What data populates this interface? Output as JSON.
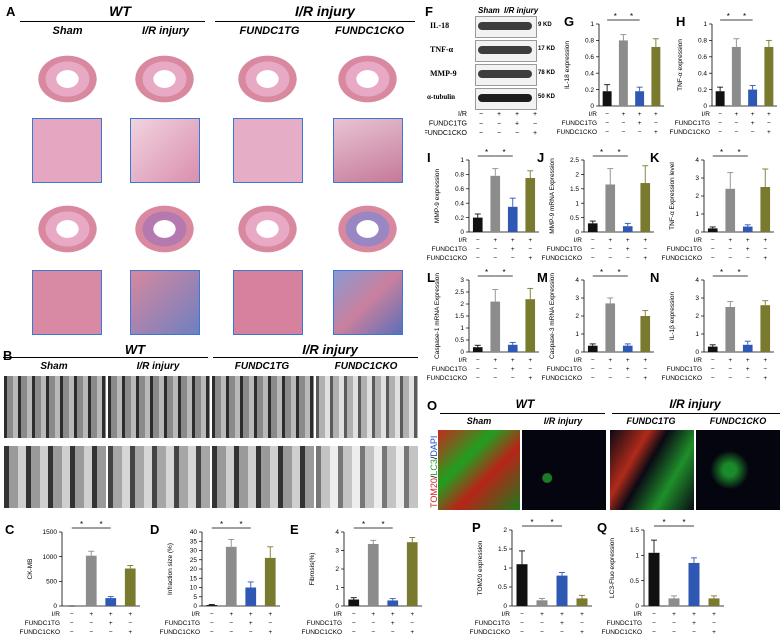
{
  "panels": {
    "A": "A",
    "B": "B",
    "C": "C",
    "D": "D",
    "E": "E",
    "F": "F",
    "G": "G",
    "H": "H",
    "I": "I",
    "J": "J",
    "K": "K",
    "L": "L",
    "M": "M",
    "N": "N",
    "O": "O",
    "P": "P",
    "Q": "Q"
  },
  "groups": {
    "wt": "WT",
    "ir": "I/R injury",
    "sham": "Sham",
    "ir_injury": "I/R  injury",
    "tg": "FUNDC1TG",
    "cko": "FUNDC1CKO"
  },
  "wb": {
    "header_sham": "Sham",
    "header_ir": "I/R  injury",
    "proteins": [
      "IL-18",
      "TNF-α",
      "MMP-9",
      "α-tubulin"
    ],
    "sizes": [
      "9 KD",
      "17 KD",
      "78 KD",
      "50 KD"
    ]
  },
  "rowlabels": {
    "ir": "I/R",
    "tg": "FUNDC1TG",
    "cko": "FUNDC1CKO"
  },
  "signs": {
    "minus": "−",
    "plus": "+"
  },
  "colors": {
    "sham": "#111111",
    "ir": "#8c8c8c",
    "tg": "#2f57b4",
    "cko": "#7a7a2e"
  },
  "o_axis": {
    "tom20": "TOM20",
    "lc3": "LC3",
    "dapi": "DAPI"
  },
  "chart_data": [
    {
      "id": "C",
      "type": "bar",
      "ylabel": "CK-MB",
      "yticks": [
        0,
        500,
        1000,
        1500
      ],
      "ylim": [
        0,
        1500
      ],
      "values": [
        0,
        1020,
        160,
        760
      ],
      "errors": [
        0,
        90,
        30,
        60
      ],
      "sig": [
        [
          0,
          1
        ],
        [
          1,
          2
        ]
      ]
    },
    {
      "id": "D",
      "type": "bar",
      "ylabel": "Infraction size (%)",
      "yticks": [
        0,
        5,
        10,
        15,
        20,
        25,
        30,
        35,
        40
      ],
      "ylim": [
        0,
        40
      ],
      "values": [
        0.5,
        32,
        10,
        26
      ],
      "errors": [
        0.3,
        4,
        3,
        6
      ],
      "sig": [
        [
          0,
          1
        ],
        [
          1,
          2
        ]
      ]
    },
    {
      "id": "E",
      "type": "bar",
      "ylabel": "Fibrosis(%)",
      "yticks": [
        0,
        1,
        2,
        3,
        4
      ],
      "ylim": [
        0,
        4
      ],
      "values": [
        0.35,
        3.35,
        0.3,
        3.45
      ],
      "errors": [
        0.1,
        0.2,
        0.1,
        0.25
      ],
      "sig": [
        [
          0,
          1
        ],
        [
          1,
          2
        ]
      ]
    },
    {
      "id": "G",
      "type": "bar",
      "ylabel": "IL-18 expression",
      "yticks": [
        0,
        0.2,
        0.4,
        0.6,
        0.8,
        1.0
      ],
      "ylim": [
        0,
        1.0
      ],
      "values": [
        0.18,
        0.8,
        0.18,
        0.72
      ],
      "errors": [
        0.08,
        0.07,
        0.05,
        0.1
      ],
      "sig": [
        [
          0,
          1
        ],
        [
          1,
          2
        ]
      ]
    },
    {
      "id": "H",
      "type": "bar",
      "ylabel": "TNF-α expression",
      "yticks": [
        0,
        0.2,
        0.4,
        0.6,
        0.8,
        1.0
      ],
      "ylim": [
        0,
        1.0
      ],
      "values": [
        0.18,
        0.72,
        0.2,
        0.72
      ],
      "errors": [
        0.05,
        0.1,
        0.05,
        0.08
      ],
      "sig": [
        [
          0,
          1
        ],
        [
          1,
          2
        ]
      ]
    },
    {
      "id": "I",
      "type": "bar",
      "ylabel": "MMP-9 expression",
      "yticks": [
        0,
        0.2,
        0.4,
        0.6,
        0.8,
        1.0
      ],
      "ylim": [
        0,
        1.0
      ],
      "values": [
        0.2,
        0.78,
        0.35,
        0.75
      ],
      "errors": [
        0.05,
        0.1,
        0.12,
        0.1
      ],
      "sig": [
        [
          0,
          1
        ],
        [
          1,
          2
        ]
      ]
    },
    {
      "id": "J",
      "type": "bar",
      "ylabel": "MMP-9 mRNA Expression",
      "yticks": [
        0,
        0.5,
        1.0,
        1.5,
        2.0,
        2.5
      ],
      "ylim": [
        0,
        2.5
      ],
      "values": [
        0.3,
        1.65,
        0.2,
        1.7
      ],
      "errors": [
        0.08,
        0.55,
        0.1,
        0.6
      ],
      "sig": [
        [
          0,
          1
        ],
        [
          1,
          2
        ]
      ]
    },
    {
      "id": "K",
      "type": "bar",
      "ylabel": "TNF-α Expression level",
      "yticks": [
        0,
        1,
        2,
        3,
        4
      ],
      "ylim": [
        0,
        4
      ],
      "values": [
        0.2,
        2.4,
        0.3,
        2.5
      ],
      "errors": [
        0.08,
        0.9,
        0.1,
        1.0
      ],
      "sig": [
        [
          0,
          1
        ],
        [
          1,
          2
        ]
      ]
    },
    {
      "id": "L",
      "type": "bar",
      "ylabel": "Caspase-1 mRNA Expression",
      "yticks": [
        0,
        0.5,
        1.0,
        1.5,
        2.0,
        2.5,
        3.0
      ],
      "ylim": [
        0,
        3.0
      ],
      "values": [
        0.2,
        2.1,
        0.3,
        2.2
      ],
      "errors": [
        0.08,
        0.5,
        0.1,
        0.45
      ],
      "sig": [
        [
          0,
          1
        ],
        [
          1,
          2
        ]
      ]
    },
    {
      "id": "M",
      "type": "bar",
      "ylabel": "Caspase-3 mRNA Expression",
      "yticks": [
        0,
        1,
        2,
        3,
        4
      ],
      "ylim": [
        0,
        4
      ],
      "values": [
        0.35,
        2.7,
        0.35,
        2.0
      ],
      "errors": [
        0.1,
        0.3,
        0.1,
        0.3
      ],
      "sig": [
        [
          0,
          1
        ],
        [
          1,
          2
        ]
      ]
    },
    {
      "id": "N",
      "type": "bar",
      "ylabel": "IL-1β expression",
      "yticks": [
        0,
        1,
        2,
        3,
        4
      ],
      "ylim": [
        0,
        4
      ],
      "values": [
        0.3,
        2.5,
        0.4,
        2.6
      ],
      "errors": [
        0.1,
        0.3,
        0.2,
        0.25
      ],
      "sig": [
        [
          0,
          1
        ],
        [
          1,
          2
        ]
      ]
    },
    {
      "id": "P",
      "type": "bar",
      "ylabel": "TOM20 expression",
      "yticks": [
        0,
        0.5,
        1.0,
        1.5,
        2.0
      ],
      "ylim": [
        0,
        2.0
      ],
      "values": [
        1.1,
        0.15,
        0.8,
        0.2
      ],
      "errors": [
        0.35,
        0.05,
        0.08,
        0.08
      ],
      "sig": [
        [
          0,
          1
        ],
        [
          1,
          2
        ]
      ]
    },
    {
      "id": "Q",
      "type": "bar",
      "ylabel": "LC3-Fluo expression",
      "yticks": [
        0,
        0.5,
        1.0,
        1.5
      ],
      "ylim": [
        0,
        1.5
      ],
      "values": [
        1.05,
        0.15,
        0.85,
        0.15
      ],
      "errors": [
        0.25,
        0.05,
        0.1,
        0.05
      ],
      "sig": [
        [
          0,
          1
        ],
        [
          1,
          2
        ]
      ]
    }
  ]
}
